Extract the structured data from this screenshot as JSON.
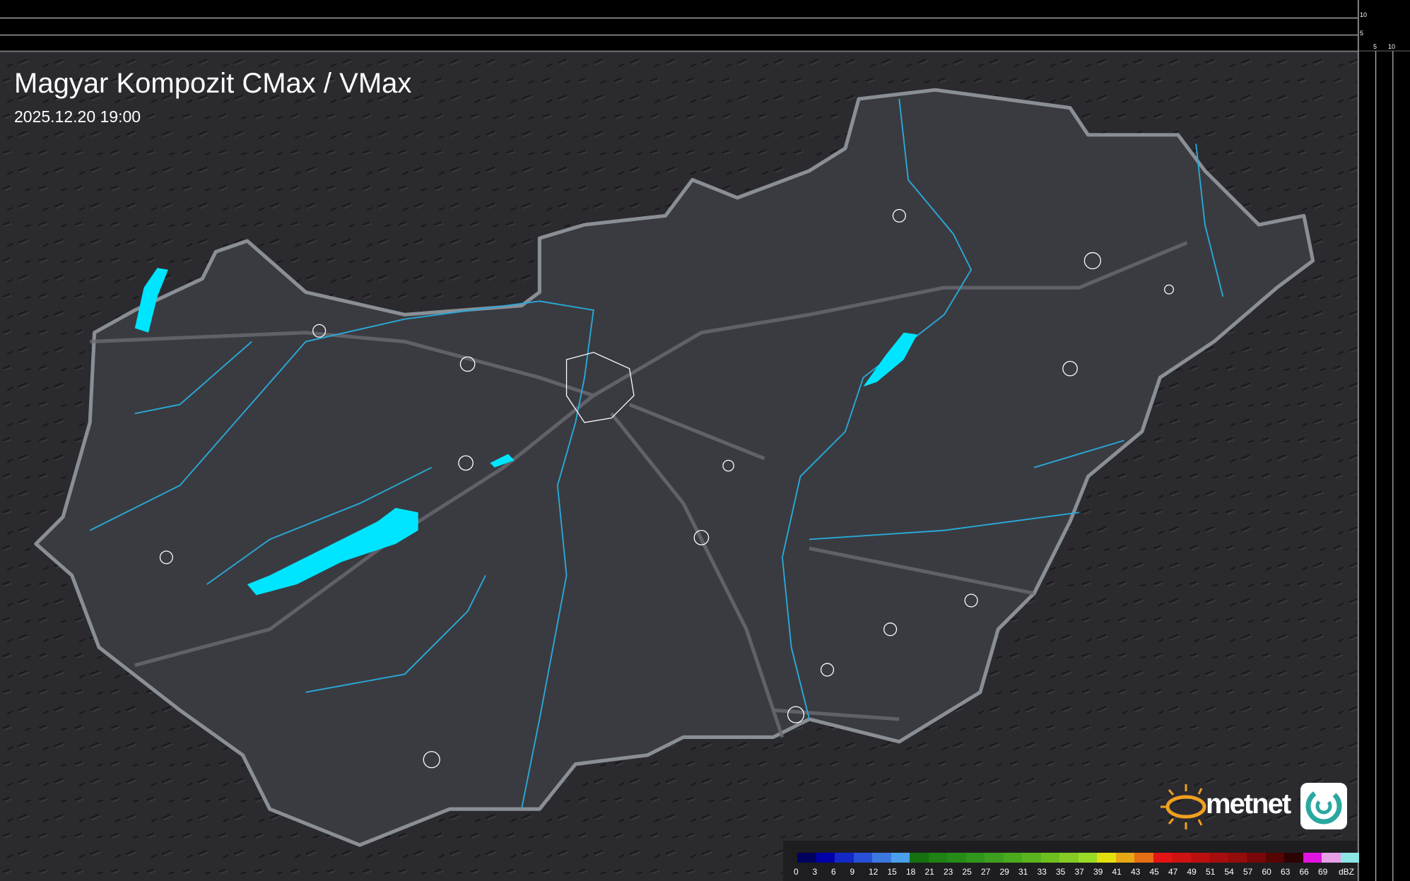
{
  "header": {
    "title": "Magyar Kompozit CMax / VMax",
    "timestamp": "2025.12.20 19:00"
  },
  "profile_axes": {
    "top_ticks": [
      "10",
      "5"
    ],
    "side_ticks": [
      "5",
      "10"
    ]
  },
  "legend": {
    "unit": "dBZ",
    "labels": [
      "0",
      "3",
      "6",
      "9",
      "12",
      "15",
      "18",
      "21",
      "23",
      "25",
      "27",
      "29",
      "31",
      "33",
      "35",
      "37",
      "39",
      "41",
      "43",
      "45",
      "47",
      "49",
      "51",
      "54",
      "57",
      "60",
      "63",
      "66",
      "69"
    ],
    "colors": [
      "#00005e",
      "#0000a8",
      "#1428c8",
      "#2850d8",
      "#3c78e0",
      "#4aa0ea",
      "#157010",
      "#1e8214",
      "#268c18",
      "#30961c",
      "#3ca01e",
      "#4aaa1e",
      "#5ab41e",
      "#6ec01e",
      "#84cc24",
      "#98dc26",
      "#e2e010",
      "#e6a814",
      "#e66e14",
      "#e41414",
      "#d01212",
      "#bc1010",
      "#a80e0e",
      "#940c0c",
      "#780808",
      "#560404",
      "#2c0202",
      "#e014e0",
      "#e6a0e6",
      "#8ce6e6"
    ]
  },
  "map": {
    "lake_color": "#00e5ff",
    "river_color": "#29a8d8",
    "border_color": "#8a8f96",
    "country_fill": "#3a3b40",
    "background": "#2a2a2e"
  },
  "brand": {
    "name": "metnet",
    "accent": "#f0a020"
  }
}
